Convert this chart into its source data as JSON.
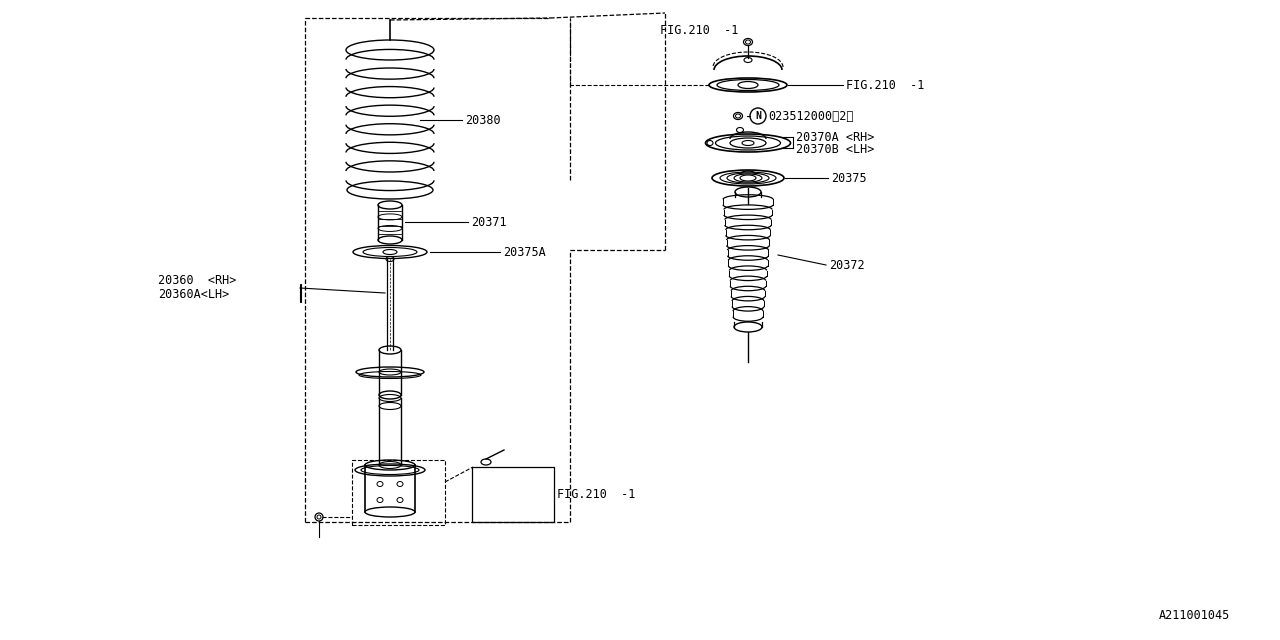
{
  "background_color": "#ffffff",
  "line_color": "#000000",
  "text_color": "#000000",
  "fig_width": 12.8,
  "fig_height": 6.4,
  "watermark": "A211001045",
  "parts": {
    "spring_label": "20380",
    "bumper_label": "20371",
    "seat_label": "20375A",
    "shock_label_rh": "20360  <RH>",
    "shock_label_lh": "20360A<LH>",
    "fig210_top": "FIG.210  -1",
    "fig210_mount": "FIG.210  -1",
    "fig210_bottom": "FIG.210  -1",
    "nut_label": "023512000（2）",
    "mount_rh": "20370A <RH>",
    "mount_lh": "20370B <LH>",
    "seat2_label": "20375",
    "boot_label": "20372"
  }
}
